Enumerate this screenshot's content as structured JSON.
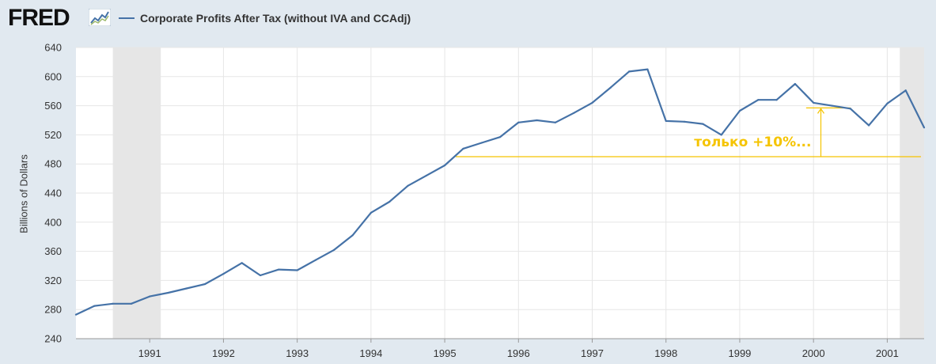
{
  "header": {
    "logo_text": "FRED",
    "legend_label": "Corporate Profits After Tax (without IVA and CCAdj)",
    "logo_icon": "trend-chart-icon"
  },
  "colors": {
    "background": "#e1e9f0",
    "plot_background": "#ffffff",
    "series_line": "#4572a7",
    "recession_shade": "#e6e6e6",
    "annotation": "#f5c400",
    "gridline": "#e6e6e6"
  },
  "chart_data": {
    "type": "line",
    "title": "Corporate Profits After Tax (without IVA and CCAdj)",
    "xlabel": "",
    "ylabel": "Billions of Dollars",
    "ylim": [
      240,
      640
    ],
    "yticks": [
      240,
      280,
      320,
      360,
      400,
      440,
      480,
      520,
      560,
      600,
      640
    ],
    "xlim": [
      1990.0,
      2001.5
    ],
    "xticks": [
      1991,
      1992,
      1993,
      1994,
      1995,
      1996,
      1997,
      1998,
      1999,
      2000,
      2001
    ],
    "grid": true,
    "recessions": [
      [
        1990.5,
        1991.15
      ],
      [
        2001.17,
        2001.5
      ]
    ],
    "series": [
      {
        "name": "Corporate Profits After Tax (without IVA and CCAdj)",
        "x": [
          1990.0,
          1990.25,
          1990.5,
          1990.75,
          1991.0,
          1991.25,
          1991.5,
          1991.75,
          1992.0,
          1992.25,
          1992.5,
          1992.75,
          1993.0,
          1993.25,
          1993.5,
          1993.75,
          1994.0,
          1994.25,
          1994.5,
          1994.75,
          1995.0,
          1995.25,
          1995.5,
          1995.75,
          1996.0,
          1996.25,
          1996.5,
          1996.75,
          1997.0,
          1997.25,
          1997.5,
          1997.75,
          1998.0,
          1998.25,
          1998.5,
          1998.75,
          1999.0,
          1999.25,
          1999.5,
          1999.75,
          2000.0,
          2000.25,
          2000.5,
          2000.75,
          2001.0,
          2001.25,
          2001.5
        ],
        "values": [
          273,
          285,
          288,
          288,
          298,
          303,
          309,
          315,
          329,
          344,
          327,
          335,
          334,
          348,
          362,
          382,
          413,
          428,
          450,
          464,
          478,
          501,
          509,
          517,
          537,
          540,
          537,
          550,
          564,
          585,
          607,
          610,
          539,
          538,
          535,
          520,
          553,
          568,
          568,
          590,
          564,
          560,
          556,
          533,
          563,
          581,
          530
        ]
      }
    ],
    "annotations": [
      {
        "text": "только +10%...",
        "baseline_value": 490,
        "baseline_from": 1995.15,
        "peak_value": 557,
        "peak_from": 1999.9,
        "peak_to": 2000.5,
        "arrow_x": 2000.1
      }
    ]
  }
}
